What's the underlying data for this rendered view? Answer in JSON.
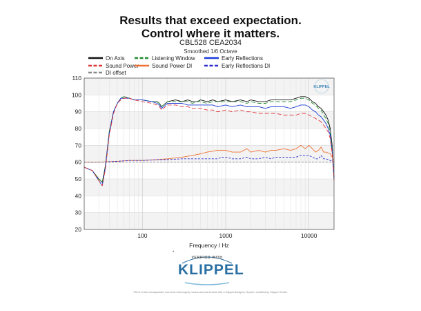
{
  "headline": {
    "line1": "Results that exceed expectation.",
    "line2": "Control where it matters."
  },
  "badge": {
    "star": "*",
    "verified": "VERIFIED WITH",
    "brand": "KLIPPEL"
  },
  "footnote": "*SILD of this loudspeaker has been thoroughly measured and tested with a Klippel Analyzer System certified by Klippel GmbH.",
  "chart_data": {
    "type": "line",
    "title": "CBL528 CEA2034",
    "subtitle": "Smoothed 1/6 Octave",
    "xlabel": "Frequency / Hz",
    "ylabel": "",
    "xscale": "log",
    "xlim": [
      20,
      20000
    ],
    "ylim": [
      20,
      110
    ],
    "xticks": [
      100,
      1000,
      10000
    ],
    "yticks": [
      20,
      30,
      40,
      50,
      60,
      70,
      80,
      90,
      100,
      110
    ],
    "watermark": "KLIPPEL",
    "legend": [
      "On Axis",
      "Listening Window",
      "Early Reflections",
      "Sound Power",
      "Sound Power DI",
      "Early Reflections DI",
      "DI offset"
    ],
    "series": [
      {
        "name": "On Axis",
        "color": "#111111",
        "dash": "solid",
        "x": [
          20,
          25,
          30,
          33,
          36,
          40,
          45,
          50,
          55,
          60,
          70,
          80,
          100,
          130,
          150,
          160,
          170,
          200,
          250,
          300,
          350,
          400,
          450,
          500,
          600,
          700,
          800,
          1000,
          1200,
          1500,
          1800,
          2000,
          2500,
          3000,
          3500,
          4000,
          5000,
          6000,
          7000,
          8000,
          9000,
          10000,
          11000,
          12000,
          13000,
          14000,
          15000,
          16000,
          17000,
          18000,
          19000,
          20000
        ],
        "y": [
          57,
          55,
          50,
          48,
          58,
          78,
          90,
          95,
          98,
          99,
          98,
          97,
          97,
          96,
          96,
          95,
          93,
          96,
          97,
          96,
          97,
          96,
          96,
          97,
          96,
          97,
          96,
          97,
          96,
          97,
          96,
          97,
          96,
          96,
          97,
          97,
          97,
          97,
          98,
          99,
          99,
          98,
          96,
          95,
          93,
          92,
          90,
          88,
          85,
          80,
          70,
          50
        ]
      },
      {
        "name": "Listening Window",
        "color": "#1e8a2e",
        "dash": "6,3",
        "x": [
          20,
          25,
          30,
          33,
          36,
          40,
          45,
          50,
          55,
          60,
          70,
          80,
          100,
          130,
          150,
          160,
          170,
          200,
          250,
          300,
          350,
          400,
          450,
          500,
          600,
          700,
          800,
          1000,
          1200,
          1500,
          1800,
          2000,
          2500,
          3000,
          3500,
          4000,
          5000,
          6000,
          7000,
          8000,
          9000,
          10000,
          11000,
          12000,
          13000,
          14000,
          15000,
          16000,
          17000,
          18000,
          19000,
          20000
        ],
        "y": [
          57,
          55,
          50,
          48,
          58,
          78,
          90,
          95,
          98,
          99,
          98,
          97,
          97,
          96,
          96,
          95,
          93,
          96,
          96,
          96,
          96,
          95,
          96,
          96,
          95,
          96,
          96,
          96,
          96,
          96,
          95,
          96,
          95,
          95,
          96,
          96,
          96,
          96,
          97,
          98,
          98,
          97,
          95,
          94,
          92,
          91,
          88,
          86,
          83,
          78,
          68,
          50
        ]
      },
      {
        "name": "Early Reflections",
        "color": "#1a3ad6",
        "dash": "solid",
        "x": [
          20,
          25,
          30,
          33,
          36,
          40,
          45,
          50,
          55,
          60,
          70,
          80,
          100,
          130,
          150,
          160,
          170,
          200,
          250,
          300,
          350,
          400,
          450,
          500,
          600,
          700,
          800,
          1000,
          1200,
          1500,
          1800,
          2000,
          2500,
          3000,
          3500,
          4000,
          5000,
          6000,
          7000,
          8000,
          9000,
          10000,
          11000,
          12000,
          13000,
          14000,
          15000,
          16000,
          17000,
          18000,
          19000,
          20000
        ],
        "y": [
          57,
          55,
          49,
          46,
          57,
          77,
          90,
          95,
          98,
          98,
          98,
          97,
          97,
          96,
          95,
          94,
          92,
          95,
          95,
          95,
          94,
          94,
          94,
          94,
          94,
          94,
          93,
          94,
          93,
          94,
          93,
          93,
          93,
          92,
          93,
          93,
          93,
          92,
          93,
          94,
          94,
          93,
          91,
          90,
          88,
          87,
          85,
          83,
          80,
          76,
          66,
          50
        ]
      },
      {
        "name": "Sound Power",
        "color": "#e0343a",
        "dash": "6,3",
        "x": [
          20,
          25,
          30,
          33,
          36,
          40,
          45,
          50,
          55,
          60,
          70,
          80,
          100,
          130,
          150,
          160,
          170,
          200,
          250,
          300,
          350,
          400,
          450,
          500,
          600,
          700,
          800,
          1000,
          1200,
          1500,
          1800,
          2000,
          2500,
          3000,
          3500,
          4000,
          5000,
          6000,
          7000,
          8000,
          9000,
          10000,
          11000,
          12000,
          13000,
          14000,
          15000,
          16000,
          17000,
          18000,
          19000,
          20000
        ],
        "y": [
          57,
          55,
          49,
          46,
          56,
          76,
          89,
          95,
          97,
          98,
          98,
          97,
          96,
          95,
          94,
          93,
          91,
          94,
          94,
          93,
          93,
          92,
          92,
          92,
          91,
          91,
          90,
          91,
          90,
          91,
          90,
          90,
          89,
          89,
          89,
          89,
          88,
          88,
          88,
          89,
          89,
          88,
          87,
          86,
          85,
          84,
          82,
          80,
          78,
          74,
          65,
          49
        ]
      },
      {
        "name": "Sound Power DI",
        "color": "#f07030",
        "dash": "solid",
        "x": [
          20,
          30,
          50,
          70,
          100,
          150,
          200,
          300,
          400,
          500,
          600,
          700,
          800,
          900,
          1000,
          1200,
          1500,
          1800,
          2000,
          2500,
          3000,
          3500,
          4000,
          5000,
          6000,
          7000,
          8000,
          9000,
          10000,
          11000,
          12000,
          13000,
          14000,
          15000,
          16000,
          18000,
          20000
        ],
        "y": [
          60,
          60,
          60.5,
          61,
          61,
          61.5,
          62,
          63,
          64,
          65,
          66,
          66.5,
          67,
          67,
          67,
          66,
          66,
          68,
          66,
          67,
          66,
          67,
          67,
          68,
          67,
          68,
          70,
          68,
          70,
          68,
          66,
          67,
          69,
          66,
          66,
          65,
          61
        ]
      },
      {
        "name": "Early Reflections DI",
        "color": "#2a2ad0",
        "dash": "3,2",
        "x": [
          20,
          30,
          50,
          70,
          100,
          150,
          200,
          300,
          400,
          500,
          600,
          700,
          800,
          900,
          1000,
          1200,
          1500,
          1800,
          2000,
          2500,
          3000,
          3500,
          4000,
          5000,
          6000,
          7000,
          8000,
          9000,
          10000,
          11000,
          12000,
          13000,
          14000,
          15000,
          16000,
          18000,
          20000
        ],
        "y": [
          60,
          60,
          60.5,
          61,
          61,
          61.5,
          61.5,
          62,
          62,
          62,
          62,
          62,
          62,
          63,
          63,
          62,
          62,
          63,
          62,
          62,
          63,
          62,
          63,
          63,
          63,
          63,
          64,
          64,
          64,
          63,
          62,
          62,
          64,
          62,
          62,
          61,
          60
        ]
      },
      {
        "name": "DI offset",
        "color": "#888888",
        "dash": "3,2",
        "x": [
          20,
          40,
          100,
          300,
          1000,
          3000,
          10000,
          20000
        ],
        "y": [
          60,
          60,
          60,
          60,
          60,
          60,
          60,
          60
        ]
      }
    ]
  }
}
